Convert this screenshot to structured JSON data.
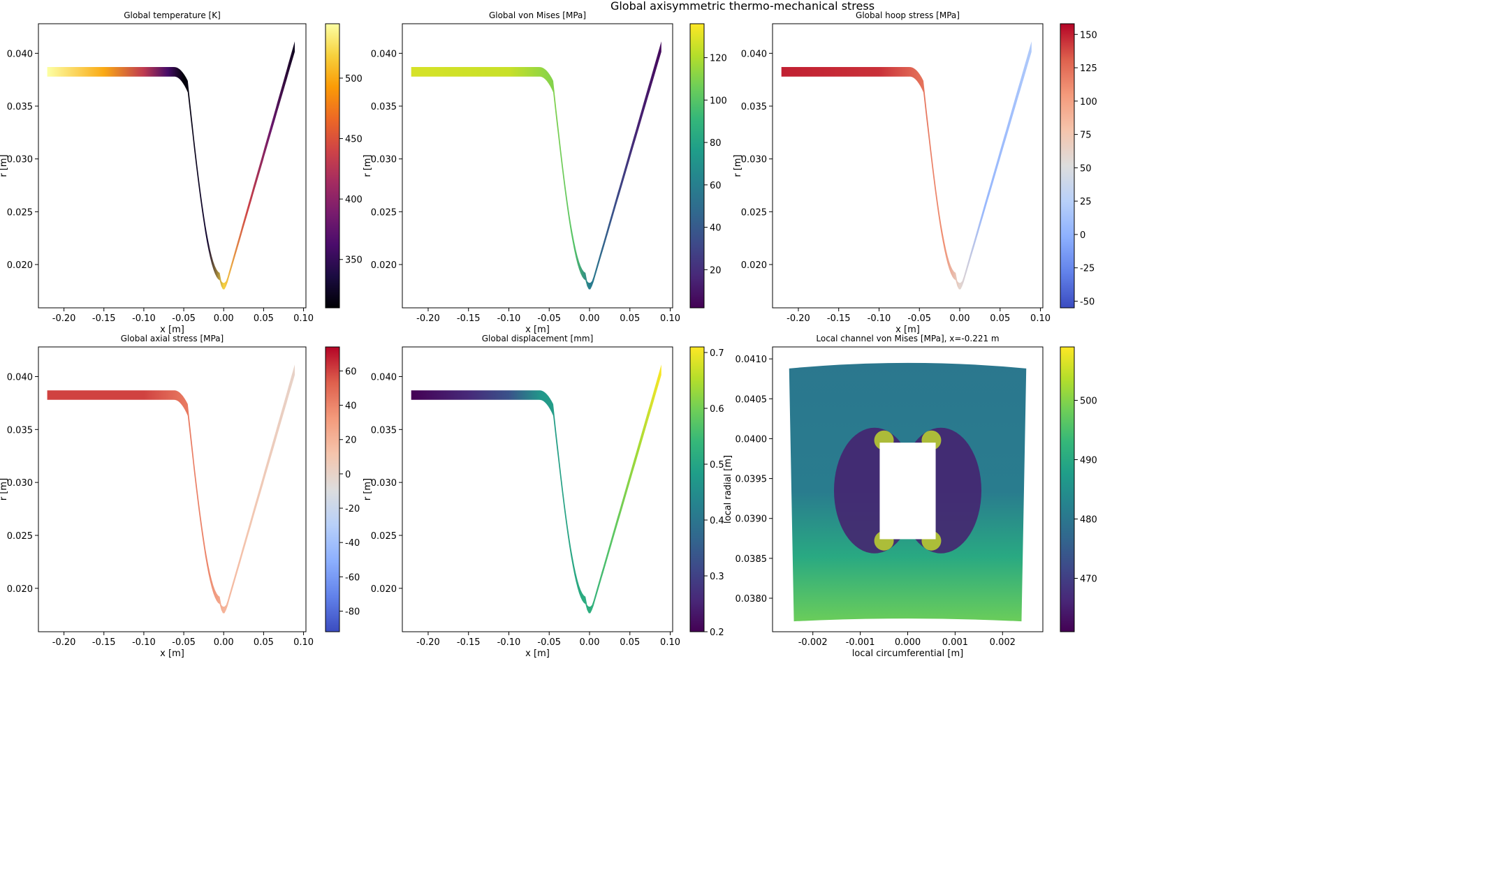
{
  "figure": {
    "suptitle": "Global axisymmetric thermo-mechanical stress"
  },
  "chart_data": [
    {
      "type": "heatmap",
      "title": "Global temperature [K]",
      "xlabel": "x [m]",
      "ylabel": "r [m]",
      "xlim": [
        -0.232,
        0.103
      ],
      "ylim": [
        0.0159,
        0.0428
      ],
      "xticks": [
        "-0.20",
        "-0.15",
        "-0.10",
        "-0.05",
        "0.00",
        "0.05",
        "0.10"
      ],
      "yticks": [
        "0.020",
        "0.025",
        "0.030",
        "0.035",
        "0.040"
      ],
      "colormap": "inferno",
      "colorbar": {
        "range": [
          310,
          545
        ],
        "ticks": [
          "350",
          "400",
          "450",
          "500"
        ]
      },
      "field": [
        {
          "x": -0.221,
          "value": 545
        },
        {
          "x": -0.15,
          "value": 500
        },
        {
          "x": -0.1,
          "value": 430
        },
        {
          "x": -0.07,
          "value": 360
        },
        {
          "x": -0.05,
          "value": 312
        },
        {
          "x": -0.02,
          "value": 330
        },
        {
          "x": 0.0,
          "value": 520
        },
        {
          "x": 0.03,
          "value": 440
        },
        {
          "x": 0.06,
          "value": 380
        },
        {
          "x": 0.09,
          "value": 320
        }
      ]
    },
    {
      "type": "heatmap",
      "title": "Global von Mises [MPa]",
      "xlabel": "x [m]",
      "ylabel": "r [m]",
      "xlim": [
        -0.232,
        0.103
      ],
      "ylim": [
        0.0159,
        0.0428
      ],
      "xticks": [
        "-0.20",
        "-0.15",
        "-0.10",
        "-0.05",
        "0.00",
        "0.05",
        "0.10"
      ],
      "yticks": [
        "0.020",
        "0.025",
        "0.030",
        "0.035",
        "0.040"
      ],
      "colormap": "viridis",
      "colorbar": {
        "range": [
          2,
          136
        ],
        "ticks": [
          "20",
          "40",
          "60",
          "80",
          "100",
          "120"
        ]
      },
      "field": [
        {
          "x": -0.221,
          "value": 128
        },
        {
          "x": -0.1,
          "value": 125
        },
        {
          "x": -0.05,
          "value": 112
        },
        {
          "x": -0.02,
          "value": 100
        },
        {
          "x": 0.0,
          "value": 60
        },
        {
          "x": 0.03,
          "value": 35
        },
        {
          "x": 0.06,
          "value": 15
        },
        {
          "x": 0.09,
          "value": 5
        }
      ]
    },
    {
      "type": "heatmap",
      "title": "Global hoop stress [MPa]",
      "xlabel": "x [m]",
      "ylabel": "r [m]",
      "xlim": [
        -0.232,
        0.103
      ],
      "ylim": [
        0.0159,
        0.0428
      ],
      "xticks": [
        "-0.20",
        "-0.15",
        "-0.10",
        "-0.05",
        "0.00",
        "0.05",
        "0.10"
      ],
      "yticks": [
        "0.020",
        "0.025",
        "0.030",
        "0.035",
        "0.040"
      ],
      "colormap": "coolwarm",
      "colorbar": {
        "range": [
          -55,
          158
        ],
        "ticks": [
          "150",
          "125",
          "100",
          "75",
          "50",
          "25",
          "0",
          "-25",
          "-50"
        ]
      },
      "field": [
        {
          "x": -0.221,
          "value": 150
        },
        {
          "x": -0.1,
          "value": 145
        },
        {
          "x": -0.05,
          "value": 125
        },
        {
          "x": -0.02,
          "value": 110
        },
        {
          "x": 0.0,
          "value": 60
        },
        {
          "x": 0.03,
          "value": 5
        },
        {
          "x": 0.06,
          "value": 10
        },
        {
          "x": 0.09,
          "value": 20
        }
      ]
    },
    {
      "type": "heatmap",
      "title": "Global axial stress [MPa]",
      "xlabel": "x [m]",
      "ylabel": "r [m]",
      "xlim": [
        -0.232,
        0.103
      ],
      "ylim": [
        0.0159,
        0.0428
      ],
      "xticks": [
        "-0.20",
        "-0.15",
        "-0.10",
        "-0.05",
        "0.00",
        "0.05",
        "0.10"
      ],
      "yticks": [
        "0.020",
        "0.025",
        "0.030",
        "0.035",
        "0.040"
      ],
      "colormap": "coolwarm",
      "colorbar": {
        "range": [
          -92,
          74
        ],
        "ticks": [
          "60",
          "40",
          "20",
          "0",
          "-20",
          "-40",
          "-60",
          "-80"
        ]
      },
      "field": [
        {
          "x": -0.221,
          "value": 60
        },
        {
          "x": -0.1,
          "value": 60
        },
        {
          "x": -0.05,
          "value": 45
        },
        {
          "x": -0.02,
          "value": 40
        },
        {
          "x": 0.0,
          "value": 20
        },
        {
          "x": 0.03,
          "value": 10
        },
        {
          "x": 0.06,
          "value": 5
        },
        {
          "x": 0.09,
          "value": 0
        }
      ]
    },
    {
      "type": "heatmap",
      "title": "Global displacement [mm]",
      "xlabel": "x [m]",
      "ylabel": "r [m]",
      "xlim": [
        -0.232,
        0.103
      ],
      "ylim": [
        0.0159,
        0.0428
      ],
      "xticks": [
        "-0.20",
        "-0.15",
        "-0.10",
        "-0.05",
        "0.00",
        "0.05",
        "0.10"
      ],
      "yticks": [
        "0.020",
        "0.025",
        "0.030",
        "0.035",
        "0.040"
      ],
      "colormap": "viridis",
      "colorbar": {
        "range": [
          0.2,
          0.71
        ],
        "ticks": [
          "0.2",
          "0.3",
          "0.4",
          "0.5",
          "0.6",
          "0.7"
        ]
      },
      "field": [
        {
          "x": -0.221,
          "value": 0.2
        },
        {
          "x": -0.15,
          "value": 0.26
        },
        {
          "x": -0.1,
          "value": 0.33
        },
        {
          "x": -0.06,
          "value": 0.47
        },
        {
          "x": 0.0,
          "value": 0.52
        },
        {
          "x": 0.03,
          "value": 0.58
        },
        {
          "x": 0.06,
          "value": 0.64
        },
        {
          "x": 0.09,
          "value": 0.71
        }
      ]
    },
    {
      "type": "heatmap",
      "title": "Local channel von Mises [MPa], x=-0.221 m",
      "xlabel": "local circumferential [m]",
      "ylabel": "local radial [m]",
      "xlim": [
        -0.00285,
        0.00285
      ],
      "ylim": [
        0.03758,
        0.04115
      ],
      "xticks": [
        "-0.002",
        "-0.001",
        "0.000",
        "0.001",
        "0.002"
      ],
      "yticks": [
        "0.0380",
        "0.0385",
        "0.0390",
        "0.0395",
        "0.0400",
        "0.0405",
        "0.0410"
      ],
      "colormap": "viridis",
      "colorbar": {
        "range": [
          461,
          509
        ],
        "ticks": [
          "470",
          "480",
          "490",
          "500"
        ]
      },
      "channel": {
        "x": [
          -0.00059,
          0.00059
        ],
        "r": [
          0.03874,
          0.03995
        ]
      },
      "field": [
        {
          "region": "outer-wall",
          "value": 481
        },
        {
          "region": "channel-sides",
          "value": 465
        },
        {
          "region": "channel-corners",
          "value": 505
        },
        {
          "region": "inner-wall",
          "value": 495
        }
      ]
    }
  ]
}
